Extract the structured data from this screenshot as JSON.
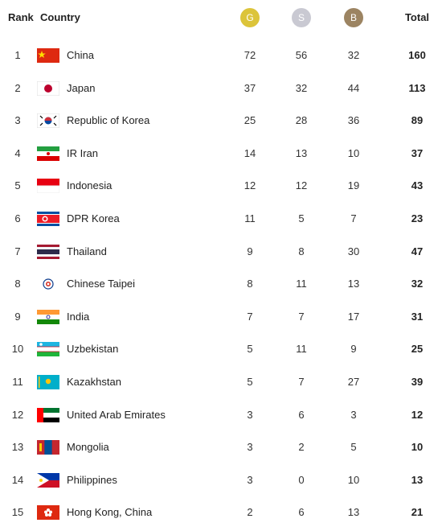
{
  "table": {
    "header": [
      "Rank",
      "Country",
      "G",
      "S",
      "B",
      "Total"
    ],
    "rows": [
      [
        1,
        "China",
        72,
        56,
        32,
        160
      ],
      [
        2,
        "Japan",
        37,
        32,
        44,
        113
      ],
      [
        3,
        "Republic of Korea",
        25,
        28,
        36,
        89
      ],
      [
        4,
        "IR Iran",
        14,
        13,
        10,
        37
      ],
      [
        5,
        "Indonesia",
        12,
        12,
        19,
        43
      ],
      [
        6,
        "DPR Korea",
        11,
        5,
        7,
        23
      ],
      [
        7,
        "Thailand",
        9,
        8,
        30,
        47
      ],
      [
        8,
        "Chinese Taipei",
        8,
        11,
        13,
        32
      ],
      [
        9,
        "India",
        7,
        7,
        17,
        31
      ],
      [
        10,
        "Uzbekistan",
        5,
        11,
        9,
        25
      ],
      [
        11,
        "Kazakhstan",
        5,
        7,
        27,
        39
      ],
      [
        12,
        "United Arab Emirates",
        3,
        6,
        3,
        12
      ],
      [
        13,
        "Mongolia",
        3,
        2,
        5,
        10
      ],
      [
        14,
        "Philippines",
        3,
        0,
        10,
        13
      ],
      [
        15,
        "Hong Kong, China",
        2,
        6,
        13,
        21
      ]
    ]
  }
}
